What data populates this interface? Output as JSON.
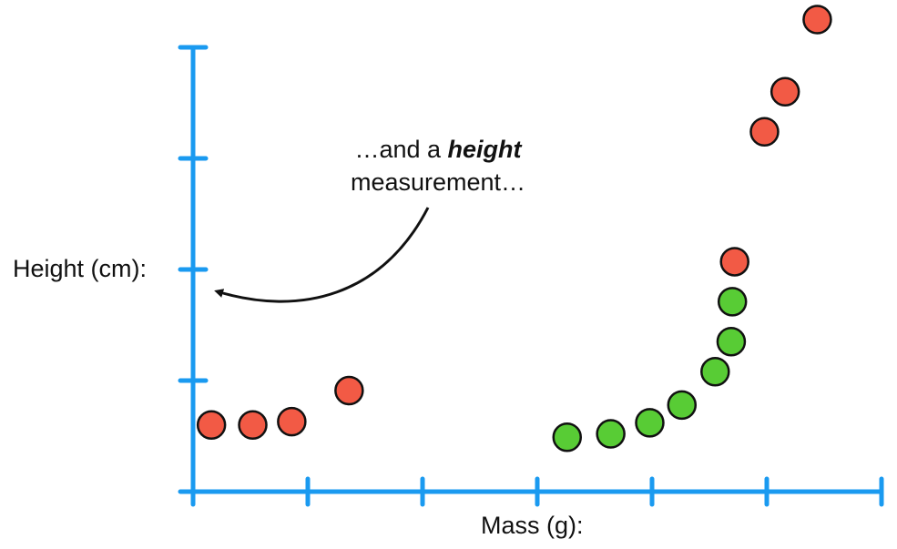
{
  "chart_data": {
    "type": "scatter",
    "xlabel": "Mass (g):",
    "ylabel": "Height (cm):",
    "xlim": [
      0,
      6
    ],
    "ylim": [
      0,
      4
    ],
    "x_ticks": [
      0,
      1,
      2,
      3,
      4,
      5,
      6
    ],
    "y_ticks": [
      0,
      1,
      2,
      3,
      4
    ],
    "tick_labels_shown": false,
    "grid": false,
    "annotation": {
      "prefix": "…and a ",
      "emphasis": "height",
      "suffix": "measurement…",
      "points_to": "y-axis"
    },
    "colors": {
      "axis": "#1a9af0",
      "red": "#f25a45",
      "green": "#58cc35",
      "outline": "#111111"
    },
    "series": [
      {
        "color": "red",
        "points": [
          {
            "x": 0.16,
            "y": 0.6
          },
          {
            "x": 0.52,
            "y": 0.6
          },
          {
            "x": 0.86,
            "y": 0.63
          },
          {
            "x": 1.36,
            "y": 0.91
          },
          {
            "x": 4.72,
            "y": 2.07
          },
          {
            "x": 4.98,
            "y": 3.24
          },
          {
            "x": 5.16,
            "y": 3.6
          },
          {
            "x": 5.44,
            "y": 4.25
          }
        ]
      },
      {
        "color": "green",
        "points": [
          {
            "x": 3.26,
            "y": 0.49
          },
          {
            "x": 3.64,
            "y": 0.52
          },
          {
            "x": 3.98,
            "y": 0.62
          },
          {
            "x": 4.26,
            "y": 0.78
          },
          {
            "x": 4.55,
            "y": 1.08
          },
          {
            "x": 4.69,
            "y": 1.35
          },
          {
            "x": 4.7,
            "y": 1.71
          }
        ]
      }
    ]
  }
}
